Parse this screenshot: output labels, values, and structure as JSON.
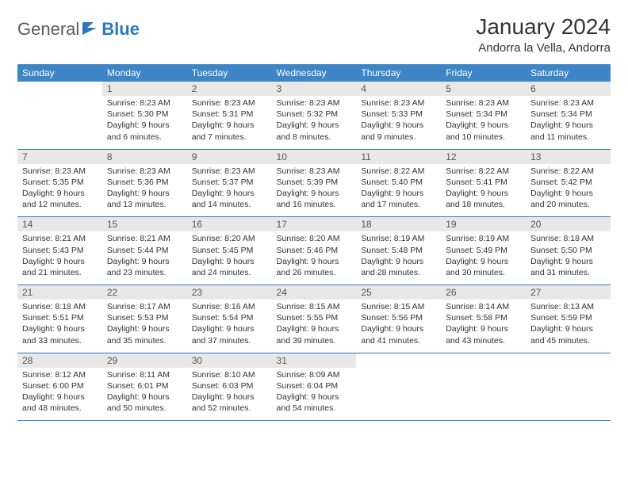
{
  "brand": {
    "part1": "General",
    "part2": "Blue"
  },
  "title": "January 2024",
  "location": "Andorra la Vella, Andorra",
  "colors": {
    "header_bg": "#3d85c6",
    "header_fg": "#ffffff",
    "daynum_bg": "#e8e8e8",
    "rule": "#2a7ab9",
    "logo_gray": "#5a5a5a",
    "logo_blue": "#2a7ab9"
  },
  "weekdays": [
    "Sunday",
    "Monday",
    "Tuesday",
    "Wednesday",
    "Thursday",
    "Friday",
    "Saturday"
  ],
  "weeks": [
    [
      {
        "n": "",
        "l": []
      },
      {
        "n": "1",
        "l": [
          "Sunrise: 8:23 AM",
          "Sunset: 5:30 PM",
          "Daylight: 9 hours and 6 minutes."
        ]
      },
      {
        "n": "2",
        "l": [
          "Sunrise: 8:23 AM",
          "Sunset: 5:31 PM",
          "Daylight: 9 hours and 7 minutes."
        ]
      },
      {
        "n": "3",
        "l": [
          "Sunrise: 8:23 AM",
          "Sunset: 5:32 PM",
          "Daylight: 9 hours and 8 minutes."
        ]
      },
      {
        "n": "4",
        "l": [
          "Sunrise: 8:23 AM",
          "Sunset: 5:33 PM",
          "Daylight: 9 hours and 9 minutes."
        ]
      },
      {
        "n": "5",
        "l": [
          "Sunrise: 8:23 AM",
          "Sunset: 5:34 PM",
          "Daylight: 9 hours and 10 minutes."
        ]
      },
      {
        "n": "6",
        "l": [
          "Sunrise: 8:23 AM",
          "Sunset: 5:34 PM",
          "Daylight: 9 hours and 11 minutes."
        ]
      }
    ],
    [
      {
        "n": "7",
        "l": [
          "Sunrise: 8:23 AM",
          "Sunset: 5:35 PM",
          "Daylight: 9 hours and 12 minutes."
        ]
      },
      {
        "n": "8",
        "l": [
          "Sunrise: 8:23 AM",
          "Sunset: 5:36 PM",
          "Daylight: 9 hours and 13 minutes."
        ]
      },
      {
        "n": "9",
        "l": [
          "Sunrise: 8:23 AM",
          "Sunset: 5:37 PM",
          "Daylight: 9 hours and 14 minutes."
        ]
      },
      {
        "n": "10",
        "l": [
          "Sunrise: 8:23 AM",
          "Sunset: 5:39 PM",
          "Daylight: 9 hours and 16 minutes."
        ]
      },
      {
        "n": "11",
        "l": [
          "Sunrise: 8:22 AM",
          "Sunset: 5:40 PM",
          "Daylight: 9 hours and 17 minutes."
        ]
      },
      {
        "n": "12",
        "l": [
          "Sunrise: 8:22 AM",
          "Sunset: 5:41 PM",
          "Daylight: 9 hours and 18 minutes."
        ]
      },
      {
        "n": "13",
        "l": [
          "Sunrise: 8:22 AM",
          "Sunset: 5:42 PM",
          "Daylight: 9 hours and 20 minutes."
        ]
      }
    ],
    [
      {
        "n": "14",
        "l": [
          "Sunrise: 8:21 AM",
          "Sunset: 5:43 PM",
          "Daylight: 9 hours and 21 minutes."
        ]
      },
      {
        "n": "15",
        "l": [
          "Sunrise: 8:21 AM",
          "Sunset: 5:44 PM",
          "Daylight: 9 hours and 23 minutes."
        ]
      },
      {
        "n": "16",
        "l": [
          "Sunrise: 8:20 AM",
          "Sunset: 5:45 PM",
          "Daylight: 9 hours and 24 minutes."
        ]
      },
      {
        "n": "17",
        "l": [
          "Sunrise: 8:20 AM",
          "Sunset: 5:46 PM",
          "Daylight: 9 hours and 26 minutes."
        ]
      },
      {
        "n": "18",
        "l": [
          "Sunrise: 8:19 AM",
          "Sunset: 5:48 PM",
          "Daylight: 9 hours and 28 minutes."
        ]
      },
      {
        "n": "19",
        "l": [
          "Sunrise: 8:19 AM",
          "Sunset: 5:49 PM",
          "Daylight: 9 hours and 30 minutes."
        ]
      },
      {
        "n": "20",
        "l": [
          "Sunrise: 8:18 AM",
          "Sunset: 5:50 PM",
          "Daylight: 9 hours and 31 minutes."
        ]
      }
    ],
    [
      {
        "n": "21",
        "l": [
          "Sunrise: 8:18 AM",
          "Sunset: 5:51 PM",
          "Daylight: 9 hours and 33 minutes."
        ]
      },
      {
        "n": "22",
        "l": [
          "Sunrise: 8:17 AM",
          "Sunset: 5:53 PM",
          "Daylight: 9 hours and 35 minutes."
        ]
      },
      {
        "n": "23",
        "l": [
          "Sunrise: 8:16 AM",
          "Sunset: 5:54 PM",
          "Daylight: 9 hours and 37 minutes."
        ]
      },
      {
        "n": "24",
        "l": [
          "Sunrise: 8:15 AM",
          "Sunset: 5:55 PM",
          "Daylight: 9 hours and 39 minutes."
        ]
      },
      {
        "n": "25",
        "l": [
          "Sunrise: 8:15 AM",
          "Sunset: 5:56 PM",
          "Daylight: 9 hours and 41 minutes."
        ]
      },
      {
        "n": "26",
        "l": [
          "Sunrise: 8:14 AM",
          "Sunset: 5:58 PM",
          "Daylight: 9 hours and 43 minutes."
        ]
      },
      {
        "n": "27",
        "l": [
          "Sunrise: 8:13 AM",
          "Sunset: 5:59 PM",
          "Daylight: 9 hours and 45 minutes."
        ]
      }
    ],
    [
      {
        "n": "28",
        "l": [
          "Sunrise: 8:12 AM",
          "Sunset: 6:00 PM",
          "Daylight: 9 hours and 48 minutes."
        ]
      },
      {
        "n": "29",
        "l": [
          "Sunrise: 8:11 AM",
          "Sunset: 6:01 PM",
          "Daylight: 9 hours and 50 minutes."
        ]
      },
      {
        "n": "30",
        "l": [
          "Sunrise: 8:10 AM",
          "Sunset: 6:03 PM",
          "Daylight: 9 hours and 52 minutes."
        ]
      },
      {
        "n": "31",
        "l": [
          "Sunrise: 8:09 AM",
          "Sunset: 6:04 PM",
          "Daylight: 9 hours and 54 minutes."
        ]
      },
      {
        "n": "",
        "l": []
      },
      {
        "n": "",
        "l": []
      },
      {
        "n": "",
        "l": []
      }
    ]
  ]
}
